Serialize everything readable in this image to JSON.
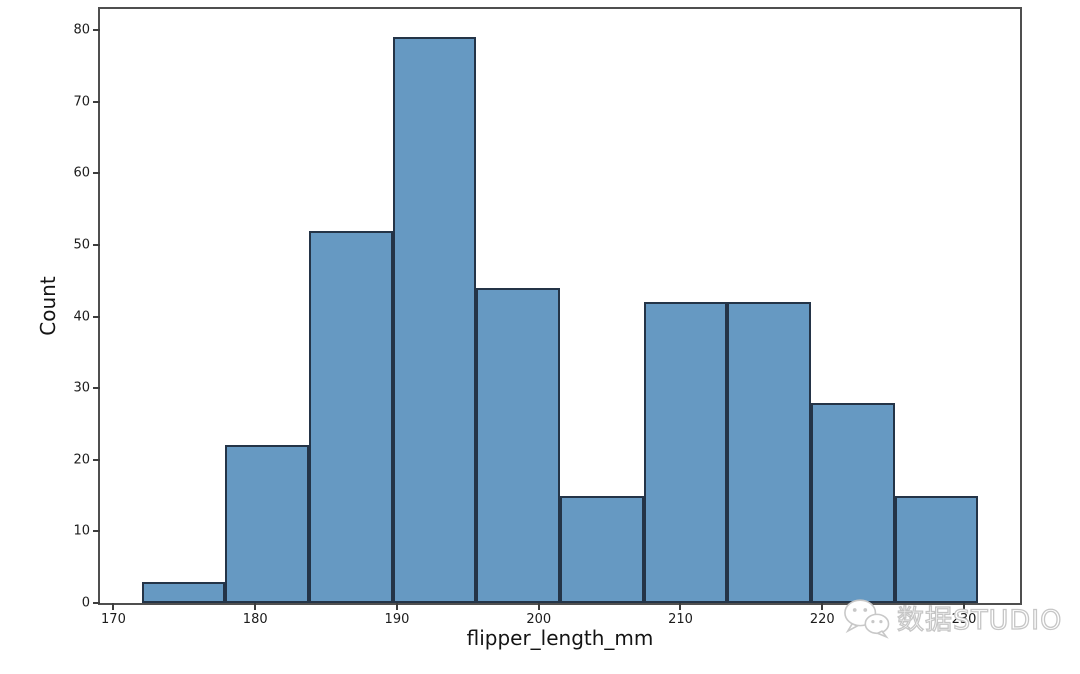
{
  "chart_data": {
    "type": "bar",
    "subtype": "histogram",
    "title": "",
    "xlabel": "flipper_length_mm",
    "ylabel": "Count",
    "bin_edges": [
      172.0,
      177.9,
      183.8,
      189.7,
      195.6,
      201.5,
      207.4,
      213.3,
      219.2,
      225.1,
      231.0
    ],
    "counts": [
      3,
      22,
      52,
      79,
      44,
      15,
      42,
      42,
      28,
      15
    ],
    "x_ticks": [
      170,
      180,
      190,
      200,
      210,
      220,
      230
    ],
    "y_ticks": [
      0,
      10,
      20,
      30,
      40,
      50,
      60,
      70,
      80
    ],
    "xlim": [
      169.05,
      233.95
    ],
    "ylim": [
      0,
      82.95
    ],
    "grid": false,
    "legend": null,
    "bar_fill": "#6699c2",
    "bar_edge": "#243447"
  },
  "watermark": {
    "icon": "wechat-icon",
    "text": "数据STUDIO",
    "color": "#c6c6c6"
  }
}
